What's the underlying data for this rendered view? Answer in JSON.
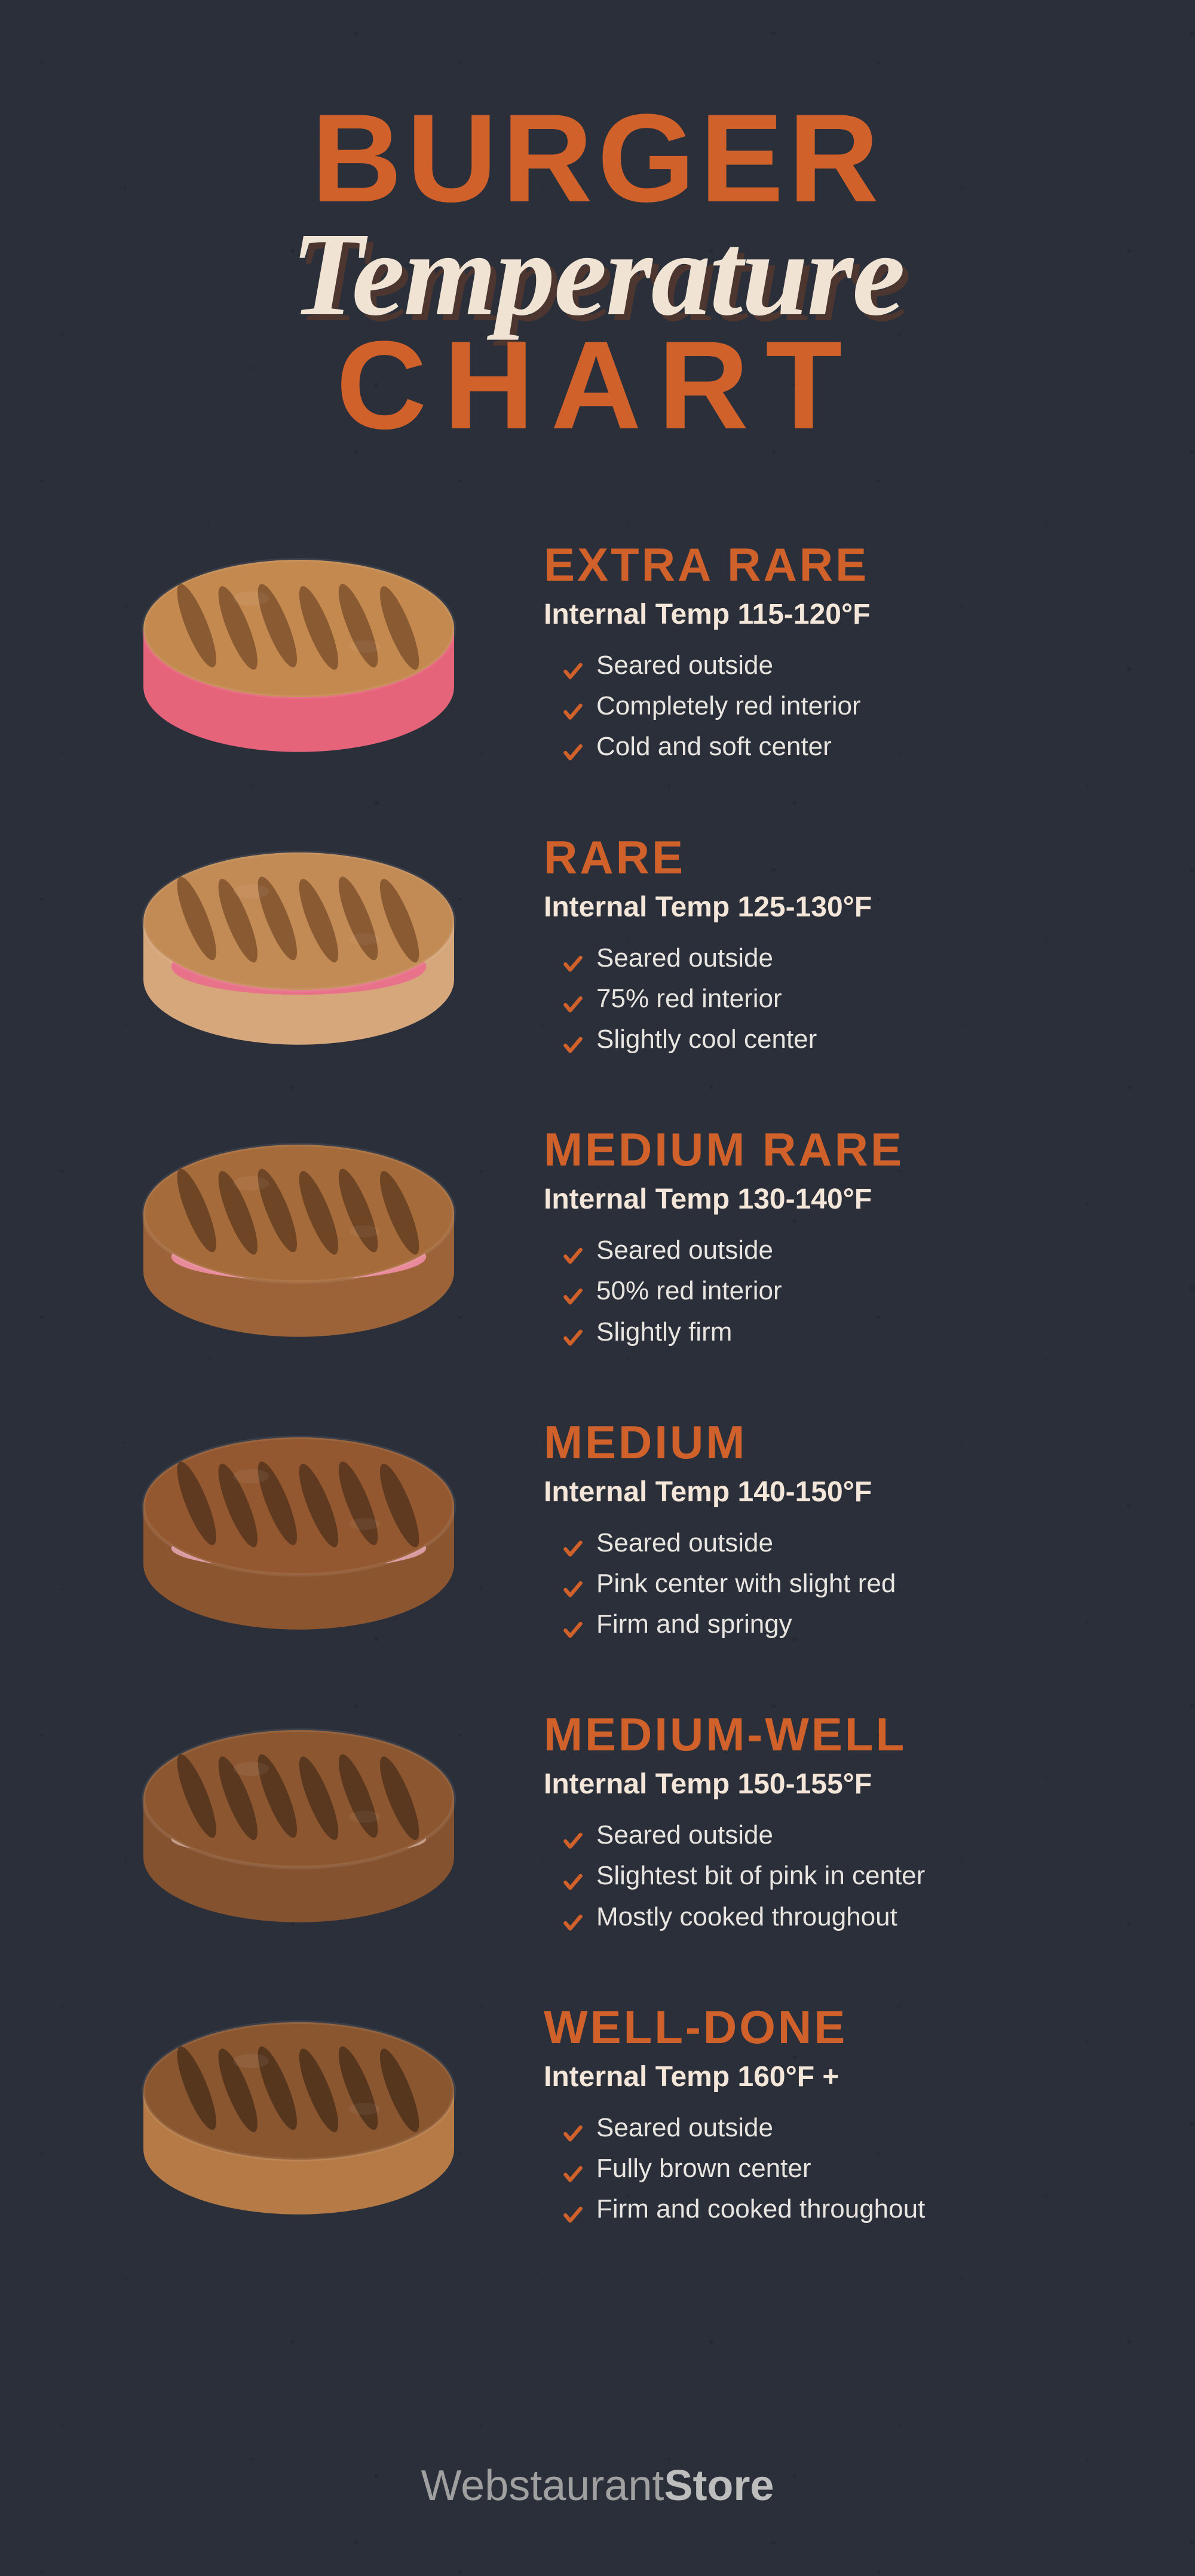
{
  "title": {
    "line1": "BURGER",
    "line2": "Temperature",
    "line3": "CHART",
    "line1_color": "#d1612b",
    "line2_color": "#f0e3d3",
    "line3_color": "#d1612b",
    "line1_fontsize": 210,
    "line2_fontsize": 200,
    "line3_fontsize": 210
  },
  "colors": {
    "background": "#2a2f3a",
    "heading": "#d1612b",
    "subheading": "#f4e6d8",
    "body_text": "#e8e4df",
    "checkmark": "#d1612b",
    "footer": "#a0a0a0"
  },
  "typography": {
    "heading_font": "Impact",
    "script_font": "Brush Script",
    "body_font": "Arial",
    "level_name_fontsize": 78,
    "temp_fontsize": 48,
    "bullet_fontsize": 44,
    "footer_fontsize": 72
  },
  "levels": [
    {
      "name": "EXTRA RARE",
      "temp": "Internal Temp 115-120°F",
      "bullets": [
        "Seared outside",
        "Completely red interior",
        "Cold and soft center"
      ],
      "patty": {
        "top_color": "#c4894f",
        "grill_color": "#8a5a33",
        "side_color": "#e6647a",
        "rare_height": 0.55
      }
    },
    {
      "name": "RARE",
      "temp": "Internal Temp 125-130°F",
      "bullets": [
        "Seared outside",
        "75% red interior",
        "Slightly cool center"
      ],
      "patty": {
        "top_color": "#c28a54",
        "grill_color": "#8a5a33",
        "side_color": "#d6a77b",
        "rare_color": "#e87289",
        "rare_height": 0.42
      }
    },
    {
      "name": "MEDIUM RARE",
      "temp": "Internal Temp 130-140°F",
      "bullets": [
        "Seared outside",
        "50% red interior",
        "Slightly firm"
      ],
      "patty": {
        "top_color": "#a66b3a",
        "grill_color": "#6e4525",
        "side_color": "#9c6338",
        "rare_color": "#e88a9a",
        "rare_height": 0.3
      }
    },
    {
      "name": "MEDIUM",
      "temp": "Internal Temp 140-150°F",
      "bullets": [
        "Seared outside",
        "Pink center with slight red",
        "Firm and springy"
      ],
      "patty": {
        "top_color": "#93582f",
        "grill_color": "#5f3a20",
        "side_color": "#8b5530",
        "rare_color": "#d99aa0",
        "rare_height": 0.22
      }
    },
    {
      "name": "MEDIUM-WELL",
      "temp": "Internal Temp 150-155°F",
      "bullets": [
        "Seared outside",
        "Slightest bit of pink in center",
        "Mostly cooked throughout"
      ],
      "patty": {
        "top_color": "#8c5730",
        "grill_color": "#5a381f",
        "side_color": "#855230",
        "rare_color": "#c19580",
        "rare_height": 0.12
      }
    },
    {
      "name": "WELL-DONE",
      "temp": "Internal Temp 160°F +",
      "bullets": [
        "Seared outside",
        "Fully brown center",
        "Firm and cooked throughout"
      ],
      "patty": {
        "top_color": "#8a5630",
        "grill_color": "#57361e",
        "side_color": "#b57a45",
        "rare_height": 0.0
      }
    }
  ],
  "footer": {
    "light": "Webstaurant",
    "bold": "Store"
  }
}
